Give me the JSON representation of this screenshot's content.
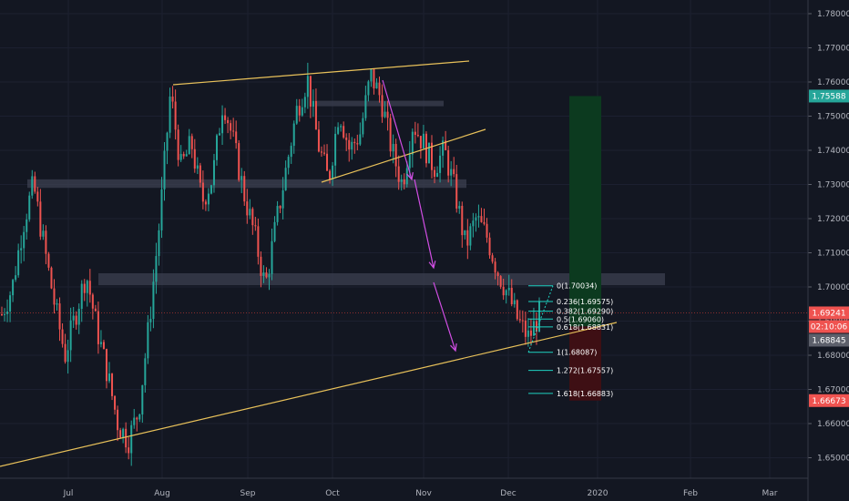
{
  "chart_data": {
    "type": "candlestick",
    "colors": {
      "background": "#131722",
      "up": "#26a69a",
      "down": "#ef5350",
      "trendline": "#e8c15a",
      "arrow": "#d24ee4",
      "fib": "#1fd3c2",
      "zone": "#3c4050",
      "long_profit": "#0c3a1f",
      "long_loss": "#3e0f14",
      "current_price_line": "#8a2d2d"
    },
    "y_range": [
      1.644,
      1.784
    ],
    "y_ticks": [
      "1.78000",
      "1.77000",
      "1.76000",
      "1.75000",
      "1.74000",
      "1.73000",
      "1.72000",
      "1.71000",
      "1.70000",
      "1.69000",
      "1.68000",
      "1.67000",
      "1.66000",
      "1.65000"
    ],
    "x_ticks": [
      "Jul",
      "Aug",
      "Sep",
      "Oct",
      "Nov",
      "Dec",
      "2020",
      "Feb",
      "Mar"
    ],
    "price_tags": [
      {
        "label": "1.75588",
        "value": 1.75588,
        "color": "#26a69a"
      },
      {
        "label": "1.69241",
        "value": 1.69241,
        "color": "#ef5350"
      },
      {
        "label": "02:10:06",
        "value": 1.6887,
        "color": "#ef5350"
      },
      {
        "label": "1.68845",
        "value": 1.68845,
        "color": "#5d606b"
      },
      {
        "label": "1.66673",
        "value": 1.66673,
        "color": "#ef5350"
      }
    ],
    "fib_levels": [
      {
        "ratio": "0",
        "label": "0(1.70034)",
        "price": 1.70034
      },
      {
        "ratio": "0.236",
        "label": "0.236(1.69575)",
        "price": 1.69575
      },
      {
        "ratio": "0.382",
        "label": "0.382(1.69290)",
        "price": 1.6929
      },
      {
        "ratio": "0.5",
        "label": "0.5(1.69060)",
        "price": 1.6906
      },
      {
        "ratio": "0.618",
        "label": "0.618(1.68831)",
        "price": 1.68831
      },
      {
        "ratio": "1",
        "label": "1(1.68087)",
        "price": 1.68087
      },
      {
        "ratio": "1.272",
        "label": "1.272(1.67557)",
        "price": 1.67557
      },
      {
        "ratio": "1.618",
        "label": "1.618(1.66883)",
        "price": 1.66883
      }
    ],
    "zones": [
      {
        "name": "resistance-zone-upper",
        "price_high": 1.7545,
        "price_low": 1.7535
      },
      {
        "name": "support-zone-mid",
        "price_high": 1.7315,
        "price_low": 1.729
      },
      {
        "name": "support-zone-lower",
        "price_high": 1.704,
        "price_low": 1.7005
      }
    ],
    "position": {
      "entry": 1.68845,
      "target": 1.75588,
      "stop": 1.66673
    },
    "current_price": 1.69241,
    "price_path": [
      1.692,
      1.7,
      1.718,
      1.73,
      1.712,
      1.695,
      1.68,
      1.692,
      1.704,
      1.688,
      1.675,
      1.66,
      1.655,
      1.664,
      1.69,
      1.72,
      1.757,
      1.735,
      1.742,
      1.725,
      1.732,
      1.755,
      1.742,
      1.727,
      1.715,
      1.7,
      1.718,
      1.735,
      1.752,
      1.761,
      1.742,
      1.731,
      1.752,
      1.74,
      1.745,
      1.762,
      1.755,
      1.74,
      1.73,
      1.748,
      1.742,
      1.735,
      1.74,
      1.728,
      1.712,
      1.72,
      1.715,
      1.705,
      1.698,
      1.69,
      1.685,
      1.692
    ]
  }
}
